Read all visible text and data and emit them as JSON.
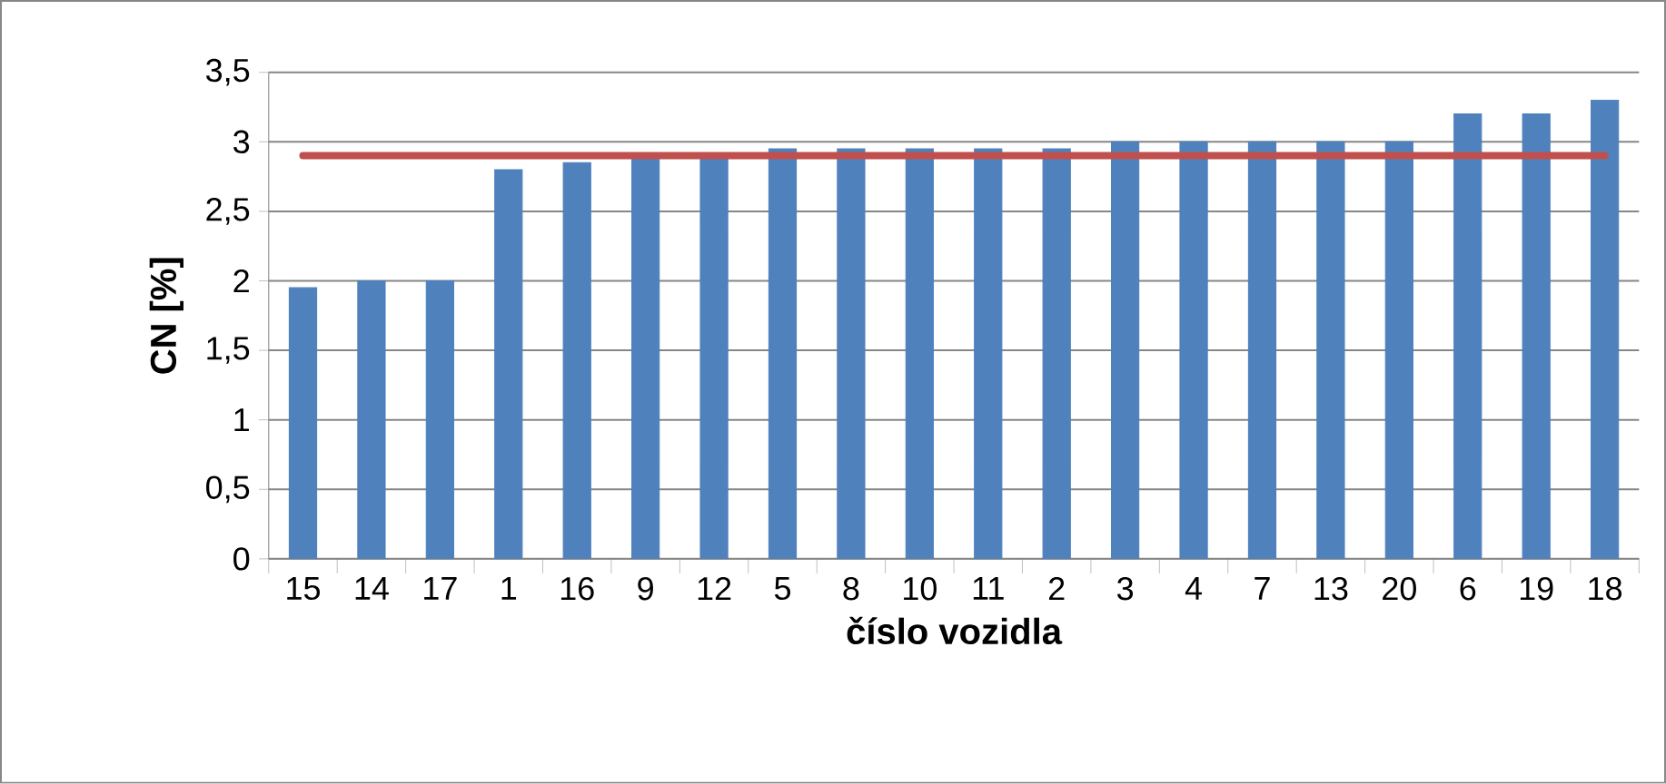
{
  "chart_data": {
    "type": "bar",
    "ylabel": "CN [%]",
    "xlabel": "číslo vozidla",
    "categories": [
      "15",
      "14",
      "17",
      "1",
      "16",
      "9",
      "12",
      "5",
      "8",
      "10",
      "11",
      "2",
      "3",
      "4",
      "7",
      "13",
      "20",
      "6",
      "19",
      "18"
    ],
    "values": [
      1.95,
      2,
      2,
      2.8,
      2.85,
      2.9,
      2.9,
      2.95,
      2.95,
      2.95,
      2.95,
      2.95,
      3,
      3,
      3,
      3,
      3,
      3.2,
      3.2,
      3.3
    ],
    "color": "#4f81bd",
    "ylim": [
      0,
      3.5
    ],
    "yticks": [
      0,
      {
        "value": 0.5,
        "label": "0,5"
      },
      1,
      {
        "value": 1.5,
        "label": "1,5"
      },
      2,
      {
        "value": 2.5,
        "label": "2,5"
      },
      3,
      {
        "value": 3.5,
        "label": "3,5"
      }
    ],
    "grid": "y",
    "ref_lines": [
      {
        "axis": "y",
        "value": 2.9,
        "color": "#c0504d"
      }
    ]
  }
}
